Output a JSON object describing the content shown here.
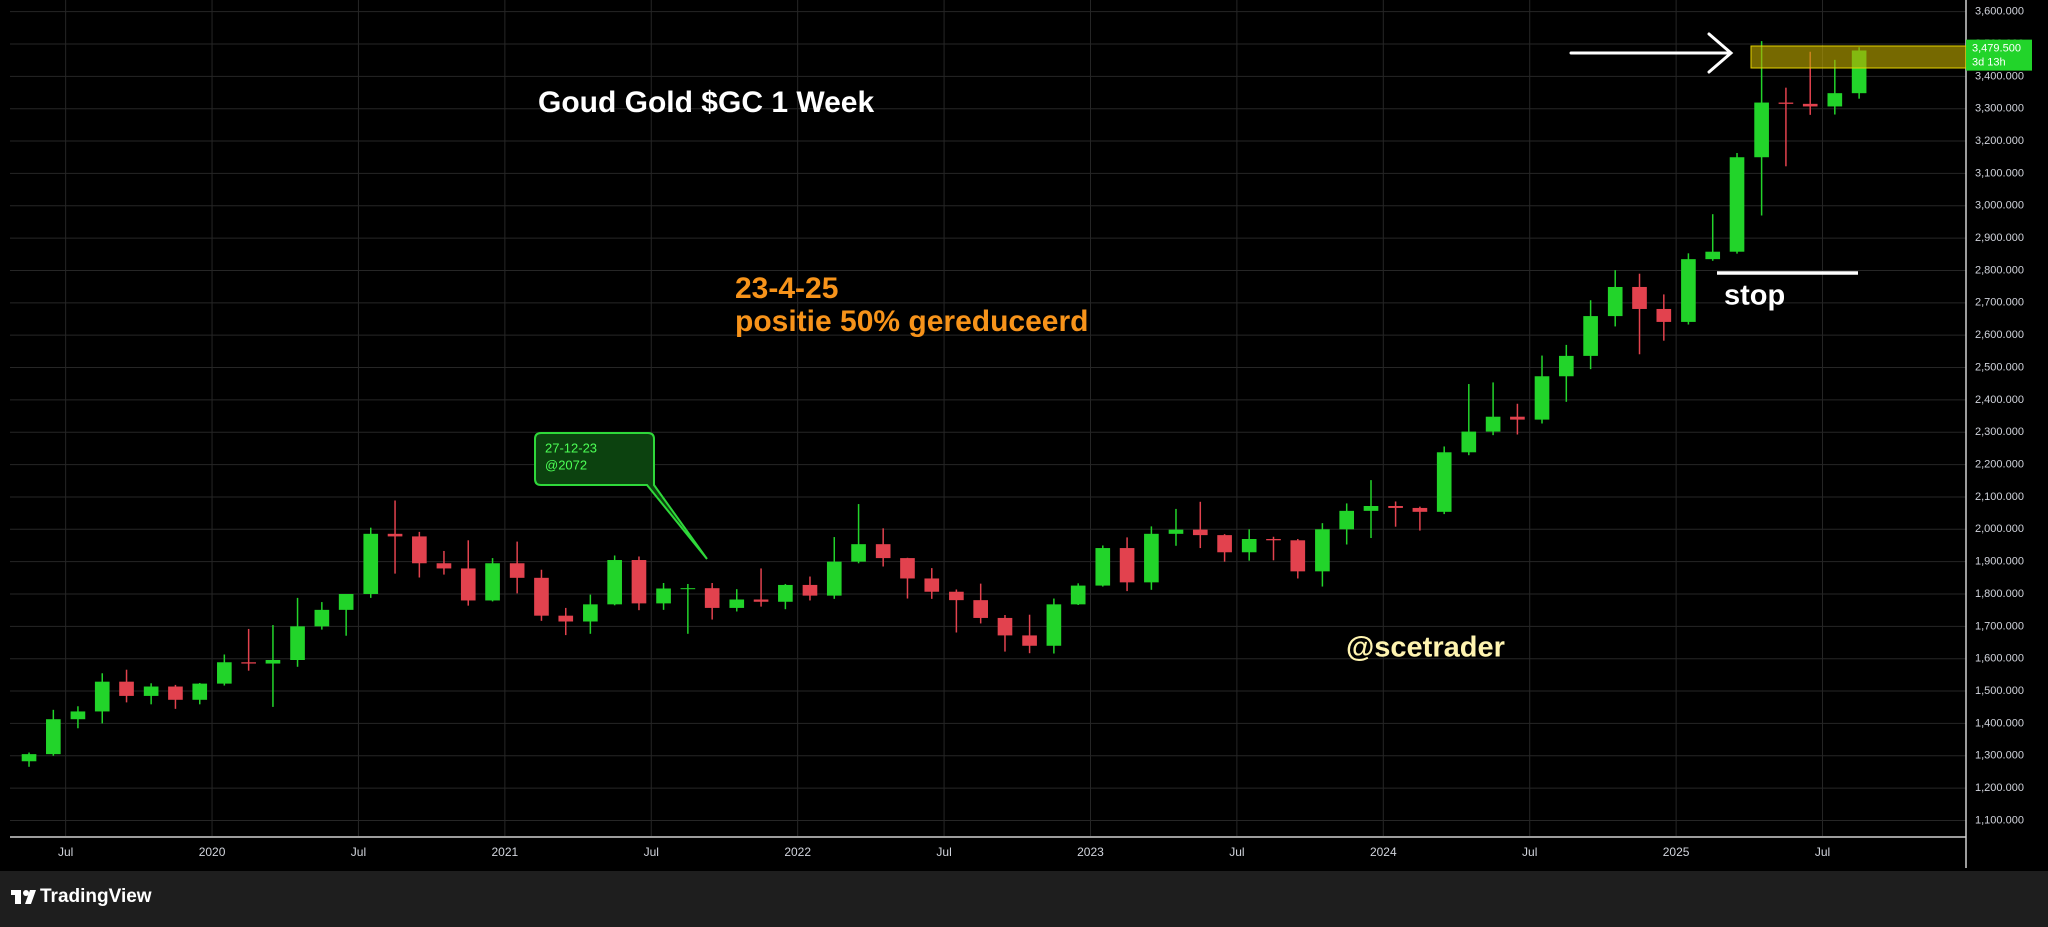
{
  "chart_data": {
    "type": "candlestick",
    "title": "Goud Gold $GC 1 Week",
    "up_color": "#22d42a",
    "down_color": "#e2424e",
    "grid": true,
    "xlim": [
      2019.31,
      2025.99
    ],
    "ylim": [
      1052,
      3636
    ],
    "xticks": [
      {
        "value": 2019.5,
        "label": "Jul"
      },
      2020,
      {
        "value": 2020.5,
        "label": "Jul"
      },
      2021,
      {
        "value": 2021.5,
        "label": "Jul"
      },
      2022,
      {
        "value": 2022.5,
        "label": "Jul"
      },
      2023,
      {
        "value": 2023.5,
        "label": "Jul"
      },
      2024,
      {
        "value": 2024.5,
        "label": "Jul"
      },
      2025,
      {
        "value": 2025.5,
        "label": "Jul"
      }
    ],
    "yticks": [
      {
        "value": 1100,
        "label": "1,100.000"
      },
      {
        "value": 1200,
        "label": "1,200.000"
      },
      {
        "value": 1300,
        "label": "1,300.000"
      },
      {
        "value": 1400,
        "label": "1,400.000"
      },
      {
        "value": 1500,
        "label": "1,500.000"
      },
      {
        "value": 1600,
        "label": "1,600.000"
      },
      {
        "value": 1700,
        "label": "1,700.000"
      },
      {
        "value": 1800,
        "label": "1,800.000"
      },
      {
        "value": 1900,
        "label": "1,900.000"
      },
      {
        "value": 2000,
        "label": "2,000.000"
      },
      {
        "value": 2100,
        "label": "2,100.000"
      },
      {
        "value": 2200,
        "label": "2,200.000"
      },
      {
        "value": 2300,
        "label": "2,300.000"
      },
      {
        "value": 2400,
        "label": "2,400.000"
      },
      {
        "value": 2500,
        "label": "2,500.000"
      },
      {
        "value": 2600,
        "label": "2,600.000"
      },
      {
        "value": 2700,
        "label": "2,700.000"
      },
      {
        "value": 2800,
        "label": "2,800.000"
      },
      {
        "value": 2900,
        "label": "2,900.000"
      },
      {
        "value": 3000,
        "label": "3,000.000"
      },
      {
        "value": 3100,
        "label": "3,100.000"
      },
      {
        "value": 3200,
        "label": "3,200.000"
      },
      {
        "value": 3300,
        "label": "3,300.000"
      },
      {
        "value": 3400,
        "label": "3,400.000"
      },
      {
        "value": 3500,
        "label": "3,500.000"
      },
      {
        "value": 3600,
        "label": "3,600.000"
      }
    ],
    "x": [
      2019.375,
      2019.458,
      2019.542,
      2019.625,
      2019.708,
      2019.792,
      2019.875,
      2019.958,
      2020.042,
      2020.125,
      2020.208,
      2020.292,
      2020.375,
      2020.458,
      2020.542,
      2020.625,
      2020.708,
      2020.792,
      2020.875,
      2020.958,
      2021.042,
      2021.125,
      2021.208,
      2021.292,
      2021.375,
      2021.458,
      2021.542,
      2021.625,
      2021.708,
      2021.792,
      2021.875,
      2021.958,
      2022.042,
      2022.125,
      2022.208,
      2022.292,
      2022.375,
      2022.458,
      2022.542,
      2022.625,
      2022.708,
      2022.792,
      2022.875,
      2022.958,
      2023.042,
      2023.125,
      2023.208,
      2023.292,
      2023.375,
      2023.458,
      2023.542,
      2023.625,
      2023.708,
      2023.792,
      2023.875,
      2023.958,
      2024.042,
      2024.125,
      2024.208,
      2024.292,
      2024.375,
      2024.458,
      2024.542,
      2024.625,
      2024.708,
      2024.792,
      2024.875,
      2024.958,
      2025.042,
      2025.125,
      2025.208,
      2025.292,
      2025.375,
      2025.458,
      2025.542,
      2025.625
    ],
    "open": [
      1283,
      1305,
      1413,
      1437,
      1529,
      1485,
      1514,
      1473,
      1523,
      1589,
      1585,
      1596,
      1700,
      1751,
      1800,
      1986,
      1978,
      1895,
      1879,
      1780,
      1895,
      1850,
      1733,
      1715,
      1768,
      1905,
      1771,
      1817,
      1818,
      1757,
      1783,
      1776,
      1828,
      1795,
      1900,
      1954,
      1911,
      1848,
      1807,
      1781,
      1726,
      1672,
      1640,
      1768,
      1826,
      1942,
      1836,
      1986,
      1999,
      1982,
      1929,
      1970,
      1966,
      1870,
      2000,
      2057,
      2072,
      2066,
      2054,
      2238,
      2302,
      2348,
      2339,
      2473,
      2536,
      2659,
      2749,
      2681,
      2641,
      2835,
      2858,
      3150,
      3319,
      3315,
      3307,
      3348
    ],
    "high": [
      1310,
      1442,
      1453,
      1555,
      1566,
      1524,
      1519,
      1525,
      1613,
      1692,
      1704,
      1788,
      1775,
      1800,
      2005,
      2089,
      1992,
      1933,
      1966,
      1911,
      1962,
      1875,
      1757,
      1798,
      1919,
      1916,
      1834,
      1831,
      1834,
      1815,
      1879,
      1831,
      1854,
      1976,
      2078,
      2003,
      1912,
      1880,
      1814,
      1832,
      1735,
      1736,
      1786,
      1833,
      1950,
      1975,
      2009,
      2063,
      2085,
      1985,
      2000,
      1977,
      1970,
      2019,
      2080,
      2152,
      2086,
      2070,
      2256,
      2449,
      2454,
      2388,
      2537,
      2570,
      2708,
      2801,
      2790,
      2726,
      2853,
      2974,
      3163,
      3509,
      3365,
      3476,
      3451,
      3490
    ],
    "low": [
      1266,
      1300,
      1385,
      1400,
      1465,
      1459,
      1445,
      1459,
      1517,
      1563,
      1451,
      1575,
      1690,
      1671,
      1788,
      1863,
      1851,
      1860,
      1764,
      1777,
      1802,
      1717,
      1673,
      1677,
      1765,
      1750,
      1751,
      1677,
      1721,
      1746,
      1761,
      1753,
      1780,
      1785,
      1895,
      1885,
      1786,
      1785,
      1681,
      1709,
      1622,
      1617,
      1616,
      1766,
      1823,
      1809,
      1813,
      1949,
      1942,
      1900,
      1903,
      1904,
      1848,
      1823,
      1953,
      1973,
      2008,
      1996,
      2047,
      2229,
      2291,
      2293,
      2327,
      2394,
      2495,
      2627,
      2541,
      2583,
      2633,
      2830,
      2852,
      2970,
      3122,
      3281,
      3282,
      3331
    ],
    "close": [
      1305,
      1413,
      1437,
      1529,
      1485,
      1514,
      1473,
      1523,
      1589,
      1585,
      1596,
      1700,
      1751,
      1800,
      1986,
      1978,
      1895,
      1879,
      1780,
      1895,
      1850,
      1733,
      1715,
      1768,
      1905,
      1771,
      1817,
      1818,
      1757,
      1783,
      1776,
      1828,
      1795,
      1900,
      1954,
      1911,
      1848,
      1807,
      1781,
      1726,
      1672,
      1640,
      1768,
      1826,
      1942,
      1836,
      1986,
      1999,
      1982,
      1929,
      1970,
      1966,
      1870,
      2000,
      2057,
      2072,
      2066,
      2054,
      2238,
      2302,
      2348,
      2339,
      2473,
      2536,
      2659,
      2749,
      2681,
      2641,
      2835,
      2858,
      3150,
      3319,
      3315,
      3307,
      3348,
      3480
    ],
    "last_price": {
      "value": 3479.5,
      "label": "3,479.500"
    },
    "countdown": "3d 13h",
    "annotations": {
      "entry_date": "27-12-23",
      "entry_price": "@2072",
      "reduce_date": "23-4-25",
      "reduce_note": "positie 50% gereduceerd",
      "stop": "stop",
      "author": "@scetrader"
    },
    "footer": "TradingView"
  }
}
